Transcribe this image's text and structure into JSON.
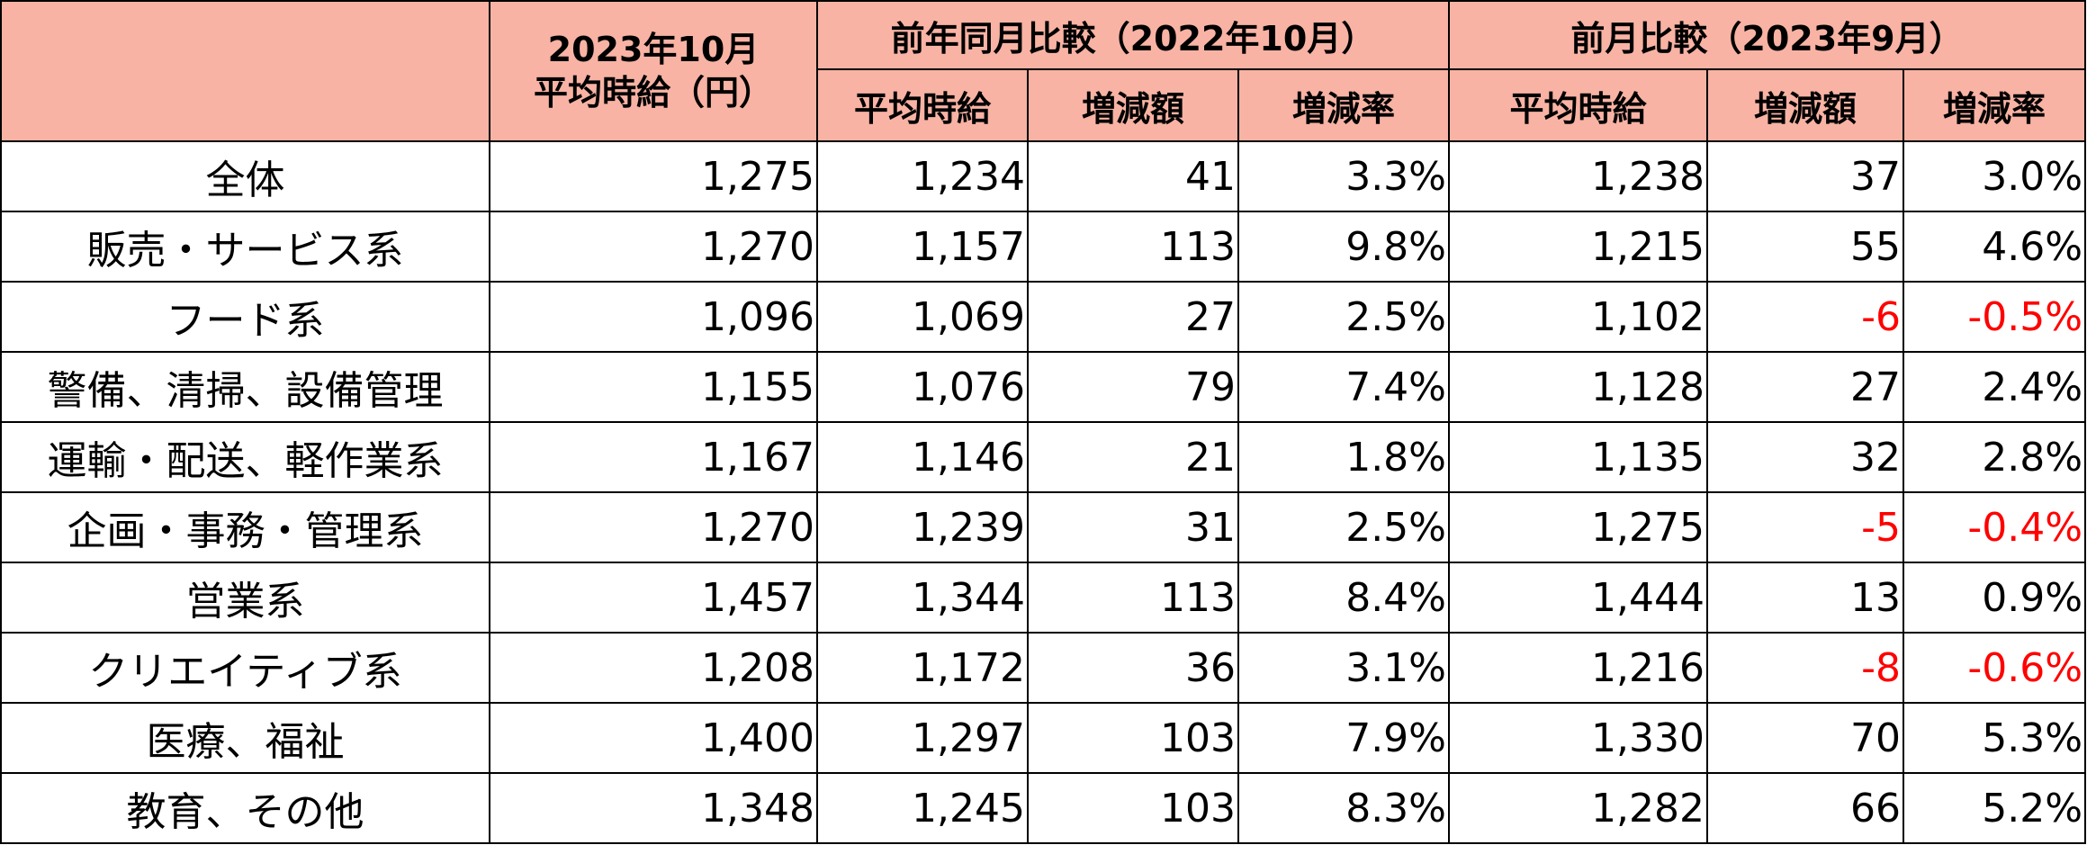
{
  "colors": {
    "header_bg": "#f8b3a4",
    "negative_text": "#ff0000",
    "border": "#000000"
  },
  "header": {
    "current_month_line1": "2023年10月",
    "current_month_line2": "平均時給（円）",
    "yoy_group": "前年同月比較（2022年10月）",
    "mom_group": "前月比較（2023年9月）",
    "sub_avg": "平均時給",
    "sub_diff": "増減額",
    "sub_rate": "増減率"
  },
  "rows": [
    {
      "category": "全体",
      "current": "1,275",
      "yoy_avg": "1,234",
      "yoy_diff": "41",
      "yoy_rate": "3.3%",
      "mom_avg": "1,238",
      "mom_diff": "37",
      "mom_rate": "3.0%",
      "mom_negative": false
    },
    {
      "category": "販売・サービス系",
      "current": "1,270",
      "yoy_avg": "1,157",
      "yoy_diff": "113",
      "yoy_rate": "9.8%",
      "mom_avg": "1,215",
      "mom_diff": "55",
      "mom_rate": "4.6%",
      "mom_negative": false
    },
    {
      "category": "フード系",
      "current": "1,096",
      "yoy_avg": "1,069",
      "yoy_diff": "27",
      "yoy_rate": "2.5%",
      "mom_avg": "1,102",
      "mom_diff": "-6",
      "mom_rate": "-0.5%",
      "mom_negative": true
    },
    {
      "category": "警備、清掃、設備管理",
      "current": "1,155",
      "yoy_avg": "1,076",
      "yoy_diff": "79",
      "yoy_rate": "7.4%",
      "mom_avg": "1,128",
      "mom_diff": "27",
      "mom_rate": "2.4%",
      "mom_negative": false
    },
    {
      "category": "運輸・配送、軽作業系",
      "current": "1,167",
      "yoy_avg": "1,146",
      "yoy_diff": "21",
      "yoy_rate": "1.8%",
      "mom_avg": "1,135",
      "mom_diff": "32",
      "mom_rate": "2.8%",
      "mom_negative": false
    },
    {
      "category": "企画・事務・管理系",
      "current": "1,270",
      "yoy_avg": "1,239",
      "yoy_diff": "31",
      "yoy_rate": "2.5%",
      "mom_avg": "1,275",
      "mom_diff": "-5",
      "mom_rate": "-0.4%",
      "mom_negative": true
    },
    {
      "category": "営業系",
      "current": "1,457",
      "yoy_avg": "1,344",
      "yoy_diff": "113",
      "yoy_rate": "8.4%",
      "mom_avg": "1,444",
      "mom_diff": "13",
      "mom_rate": "0.9%",
      "mom_negative": false
    },
    {
      "category": "クリエイティブ系",
      "current": "1,208",
      "yoy_avg": "1,172",
      "yoy_diff": "36",
      "yoy_rate": "3.1%",
      "mom_avg": "1,216",
      "mom_diff": "-8",
      "mom_rate": "-0.6%",
      "mom_negative": true
    },
    {
      "category": "医療、福祉",
      "current": "1,400",
      "yoy_avg": "1,297",
      "yoy_diff": "103",
      "yoy_rate": "7.9%",
      "mom_avg": "1,330",
      "mom_diff": "70",
      "mom_rate": "5.3%",
      "mom_negative": false
    },
    {
      "category": "教育、その他",
      "current": "1,348",
      "yoy_avg": "1,245",
      "yoy_diff": "103",
      "yoy_rate": "8.3%",
      "mom_avg": "1,282",
      "mom_diff": "66",
      "mom_rate": "5.2%",
      "mom_negative": false
    }
  ]
}
